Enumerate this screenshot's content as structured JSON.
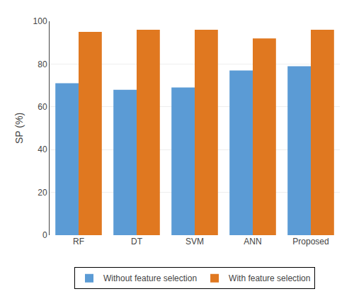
{
  "chart_data": {
    "type": "bar",
    "categories": [
      "RF",
      "DT",
      "SVM",
      "ANN",
      "Proposed"
    ],
    "series": [
      {
        "name": "Without feature selection",
        "color": "#5B9BD5",
        "values": [
          71,
          68,
          69,
          77,
          79
        ]
      },
      {
        "name": "With feature selection",
        "color": "#E07820",
        "values": [
          95,
          96,
          96,
          92,
          96
        ]
      }
    ],
    "ylabel": "SP (%)",
    "ylim": [
      0,
      100
    ],
    "yticks": [
      0,
      20,
      40,
      60,
      80,
      100
    ],
    "grid": true,
    "legend": "bottom"
  }
}
